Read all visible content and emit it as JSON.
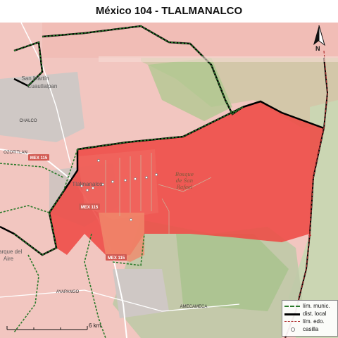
{
  "title": "México 104 - TLALMANALCO",
  "colors": {
    "district_fill": "#ee4a44",
    "neighbor_fill": "#f2b3ad",
    "urban_fill": "#c9c4c1",
    "forest_fill": "#b9d39c",
    "munic_line": "#2a7a2a",
    "local_line": "#000000",
    "edo_line": "#b03030"
  },
  "places": {
    "san_martin_1": "San Martín",
    "san_martin_2": "Cuautlalpan",
    "chalco": "CHALCO",
    "tlalmanalco": "Tlalmanalco",
    "bosque_1": "Bosque",
    "bosque_2": "de San",
    "bosque_3": "Rafael",
    "ozotitlan": "OZOTITLAN",
    "ayapango": "AYAPANGO",
    "amecameca": "AMECAMECA",
    "parque_1": "Parque del",
    "parque_2": "Aire"
  },
  "roads": {
    "mex115_a": "MEX 115",
    "mex115_b": "MEX 115",
    "mex115_c": "MEX 115"
  },
  "legend": {
    "items": [
      {
        "label": "lím. munic.",
        "icon": "dashed-green-line"
      },
      {
        "label": "dist. local",
        "icon": "thick-black-line"
      },
      {
        "label": "lím. edo.",
        "icon": "dashed-red-line"
      },
      {
        "label": "casilla",
        "icon": "white-circle"
      }
    ]
  },
  "scale": {
    "label": "6 km"
  },
  "north": {
    "label": "N"
  }
}
